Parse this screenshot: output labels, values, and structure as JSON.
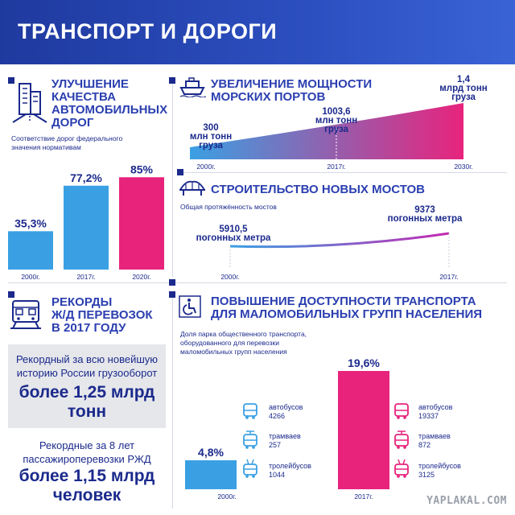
{
  "header": {
    "title": "ТРАНСПОРТ И ДОРОГИ"
  },
  "roads": {
    "title": "УЛУЧШЕНИЕ\nКАЧЕСТВА\nАВТОМОБИЛЬНЫХ\nДОРОГ",
    "subtitle": "Соответствие дорог федерального\nзначения нормативам"
  },
  "ports": {
    "title": "УВЕЛИЧЕНИЕ МОЩНОСТИ\nМОРСКИХ ПОРТОВ",
    "labels": [
      "300\nмлн тонн\nгруза",
      "1003,6\nмлн тонн\nгруза",
      "1,4\nмлрд тонн\nгруза"
    ]
  },
  "bridges": {
    "title": "СТРОИТЕЛЬСТВО НОВЫХ МОСТОВ",
    "subtitle": "Общая протяжённость мостов",
    "labels": [
      "5910,5\nпогонных метра",
      "9373\nпогонных метра"
    ]
  },
  "rail": {
    "title": "РЕКОРДЫ\nЖ/Д ПЕРЕВОЗОК\nВ 2017 ГОДУ",
    "freight_small": "Рекордный за всю новейшую\nисторию России грузооборот",
    "freight_big": "более 1,25 млрд\nтонн",
    "pass_small": "Рекордные за 8 лет\nпассажироперевозки РЖД",
    "pass_big": "более 1,15 млрд\nчеловек"
  },
  "access": {
    "title": "ПОВЫШЕНИЕ ДОСТУПНОСТИ ТРАНСПОРТА\nДЛЯ МАЛОМОБИЛЬНЫХ ГРУПП НАСЕЛЕНИЯ",
    "subtitle": "Доля парка общественного транспорта,\nоборудованного для перевозки\nмаломобильных групп населения",
    "vehicles_2000": [
      "автобусов\n4266",
      "трамваев\n257",
      "тролейбусов\n1044"
    ],
    "vehicles_2017": [
      "автобусов\n19337",
      "трамваев\n872",
      "тролейбусов\n3125"
    ]
  },
  "watermark": "YAPLAKAL.COM",
  "colors": {
    "blue": "#3aa0e3",
    "pink": "#e8237c",
    "magenta": "#c42ab3",
    "navy": "#1b2a8c"
  },
  "chart_data": [
    {
      "type": "bar",
      "categories": [
        "2000г.",
        "2017г.",
        "2020г."
      ],
      "values": [
        35.3,
        77.2,
        85
      ],
      "value_labels": [
        "35,3%",
        "77,2%",
        "85%"
      ],
      "ylim": [
        0,
        100
      ]
    },
    {
      "type": "area",
      "x": [
        "2000г.",
        "2017г.",
        "2030г."
      ],
      "values": [
        0.3,
        1.0036,
        1.4
      ],
      "ylim": [
        0,
        1.4
      ]
    },
    {
      "type": "line",
      "x": [
        "2000г.",
        "2017г."
      ],
      "values": [
        5910.5,
        9373
      ]
    },
    {
      "type": "bar",
      "categories": [
        "2000г.",
        "2017г."
      ],
      "values": [
        4.8,
        19.6
      ],
      "value_labels": [
        "4,8%",
        "19,6%"
      ],
      "ylim": [
        0,
        20
      ]
    }
  ]
}
